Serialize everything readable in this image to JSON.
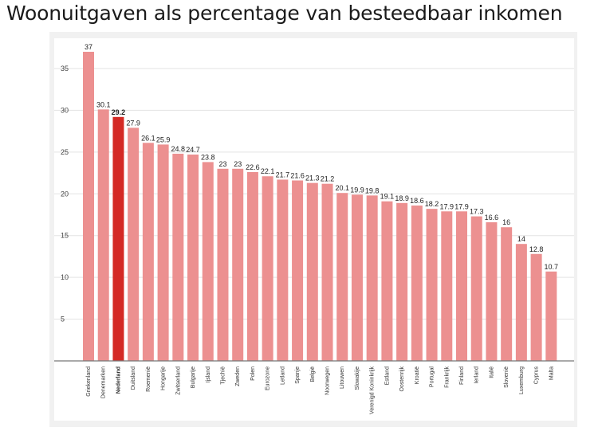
{
  "title": "Woonuitgaven als percentage van besteedbaar inkomen",
  "colors": {
    "bar": "#ec9090",
    "highlight": "#d42a25",
    "grid": "#e3e3e3",
    "axis": "#777777"
  },
  "chart_data": {
    "type": "bar",
    "title": "Woonuitgaven als percentage van besteedbaar inkomen",
    "xlabel": "",
    "ylabel": "",
    "ylim": [
      0,
      37
    ],
    "yticks": [
      5,
      10,
      15,
      20,
      25,
      30,
      35
    ],
    "grid": true,
    "highlight": "Nederland",
    "categories": [
      "Griekenland",
      "Denemarken",
      "Nederland",
      "Duitsland",
      "Roemenië",
      "Hongarije",
      "Zwitserland",
      "Bulgarije",
      "Ijsland",
      "Tjechië",
      "Zweden",
      "Polen",
      "Eurozone",
      "Letland",
      "Spanje",
      "België",
      "Noorwegen",
      "Litouwen",
      "Slowakije",
      "Verenigd Koninkrijk",
      "Estland",
      "Oostenrijk",
      "Kroatië",
      "Portugal",
      "Frankrijk",
      "Finland",
      "Ierland",
      "Italië",
      "Slovenië",
      "Luxemburg",
      "Cyprus",
      "Malta"
    ],
    "values": [
      37,
      30.1,
      29.2,
      27.9,
      26.1,
      25.9,
      24.8,
      24.7,
      23.8,
      23,
      23,
      22.6,
      22.1,
      21.7,
      21.6,
      21.3,
      21.2,
      20.1,
      19.9,
      19.8,
      19.1,
      18.9,
      18.6,
      18.2,
      17.9,
      17.9,
      17.3,
      16.6,
      16,
      14,
      12.8,
      10.7
    ]
  }
}
